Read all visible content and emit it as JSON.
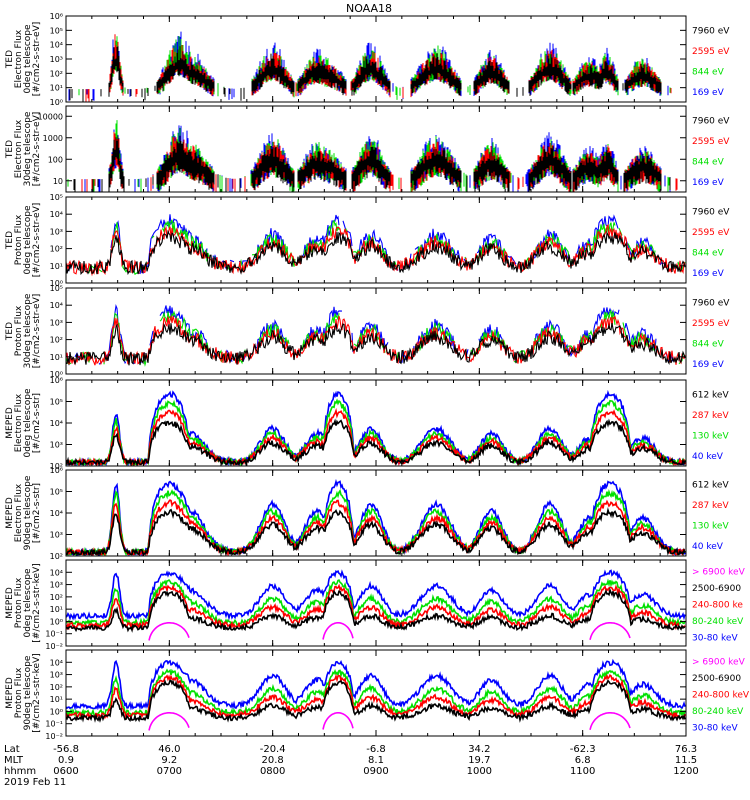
{
  "chart_data": {
    "type": "line",
    "title": "NOAA18",
    "colors": {
      "black": "#000000",
      "red": "#ff0000",
      "green": "#00e000",
      "blue": "#0000ff",
      "magenta": "#ff00ff"
    },
    "panels": [
      {
        "ylabel_lines": [
          "TED",
          "Electron Flux",
          "0deg telescope",
          "[#/cm2-s-str-eV]"
        ],
        "ylim": [
          1,
          1000000
        ],
        "yticks": [
          {
            "v": 1,
            "label": "10⁰"
          },
          {
            "v": 10,
            "label": "10¹"
          },
          {
            "v": 100,
            "label": "10²"
          },
          {
            "v": 1000,
            "label": "10³"
          },
          {
            "v": 10000,
            "label": "10⁴"
          },
          {
            "v": 100000,
            "label": "10⁵"
          },
          {
            "v": 1000000,
            "label": "10⁶"
          }
        ],
        "legend": [
          {
            "label": "7960 eV",
            "color": "black"
          },
          {
            "label": "2595 eV",
            "color": "red"
          },
          {
            "label": "844 eV",
            "color": "green"
          },
          {
            "label": "169 eV",
            "color": "blue"
          }
        ],
        "seed": 11,
        "kind": "spiky",
        "baseline": 20,
        "peakmax": 100000.0
      },
      {
        "ylabel_lines": [
          "TED",
          "Electron Flux",
          "30deg telescope",
          "[#/cm2-s-str-eV]"
        ],
        "ylim": [
          3,
          30000
        ],
        "yticks": [
          {
            "v": 10,
            "label": "10"
          },
          {
            "v": 100,
            "label": "100"
          },
          {
            "v": 1000,
            "label": "1000"
          },
          {
            "v": 10000,
            "label": "10000"
          }
        ],
        "legend": [
          {
            "label": "7960 eV",
            "color": "black"
          },
          {
            "label": "2595 eV",
            "color": "red"
          },
          {
            "label": "844 eV",
            "color": "green"
          },
          {
            "label": "169 eV",
            "color": "blue"
          }
        ],
        "seed": 23,
        "kind": "spiky",
        "baseline": 10,
        "peakmax": 5000
      },
      {
        "ylabel_lines": [
          "TED",
          "Proton Flux",
          "0deg telescope",
          "[#/cm2-s-str-eV]"
        ],
        "ylim": [
          1,
          100000
        ],
        "yticks": [
          {
            "v": 1,
            "label": "10⁰"
          },
          {
            "v": 10,
            "label": "10¹"
          },
          {
            "v": 100,
            "label": "10²"
          },
          {
            "v": 1000,
            "label": "10³"
          },
          {
            "v": 10000,
            "label": "10⁴"
          },
          {
            "v": 100000,
            "label": "10⁵"
          }
        ],
        "legend": [
          {
            "label": "7960 eV",
            "color": "black"
          },
          {
            "label": "2595 eV",
            "color": "red"
          },
          {
            "label": "844 eV",
            "color": "green"
          },
          {
            "label": "169 eV",
            "color": "blue"
          }
        ],
        "seed": 37,
        "kind": "proton",
        "baseline": 15,
        "peakmax": 10000.0
      },
      {
        "ylabel_lines": [
          "TED",
          "Proton Flux",
          "30deg telescope",
          "[#/cm2-s-str-eV]"
        ],
        "ylim": [
          1,
          100000
        ],
        "yticks": [
          {
            "v": 1,
            "label": "10⁰"
          },
          {
            "v": 10,
            "label": "10¹"
          },
          {
            "v": 100,
            "label": "10²"
          },
          {
            "v": 1000,
            "label": "10³"
          },
          {
            "v": 10000,
            "label": "10⁴"
          },
          {
            "v": 100000,
            "label": "10⁵"
          }
        ],
        "legend": [
          {
            "label": "7960 eV",
            "color": "black"
          },
          {
            "label": "2595 eV",
            "color": "red"
          },
          {
            "label": "844 eV",
            "color": "green"
          },
          {
            "label": "169 eV",
            "color": "blue"
          }
        ],
        "seed": 41,
        "kind": "proton",
        "baseline": 15,
        "peakmax": 10000.0
      },
      {
        "ylabel_lines": [
          "MEPED",
          "Electron Flux",
          "0deg telescope",
          "[#/cm2-s-str]"
        ],
        "ylim": [
          100,
          1000000
        ],
        "yticks": [
          {
            "v": 100,
            "label": "10²"
          },
          {
            "v": 1000,
            "label": "10³"
          },
          {
            "v": 10000,
            "label": "10⁴"
          },
          {
            "v": 100000,
            "label": "10⁵"
          },
          {
            "v": 1000000,
            "label": "10⁶"
          }
        ],
        "legend": [
          {
            "label": "612 keV",
            "color": "black"
          },
          {
            "label": "287 keV",
            "color": "red"
          },
          {
            "label": "130 keV",
            "color": "green"
          },
          {
            "label": "40 keV",
            "color": "blue"
          }
        ],
        "seed": 53,
        "kind": "meped_e0",
        "baseline": 200,
        "peakmax": 500000.0
      },
      {
        "ylabel_lines": [
          "MEPED",
          "Electron Flux",
          "90deg telescope",
          "[#/cm2-s-str]"
        ],
        "ylim": [
          100,
          1000000
        ],
        "yticks": [
          {
            "v": 100,
            "label": "10²"
          },
          {
            "v": 1000,
            "label": "10³"
          },
          {
            "v": 10000,
            "label": "10⁴"
          },
          {
            "v": 100000,
            "label": "10⁵"
          },
          {
            "v": 1000000,
            "label": "10⁶"
          }
        ],
        "legend": [
          {
            "label": "612 keV",
            "color": "black"
          },
          {
            "label": "287 keV",
            "color": "red"
          },
          {
            "label": "130 keV",
            "color": "green"
          },
          {
            "label": "40 keV",
            "color": "blue"
          }
        ],
        "seed": 67,
        "kind": "meped_e90",
        "baseline": 300,
        "peakmax": 500000.0
      },
      {
        "ylabel_lines": [
          "MEPED",
          "Proton Flux",
          "0deg telescope",
          "[#/cm2-s-str-keV]"
        ],
        "ylim": [
          0.01,
          100000
        ],
        "yticks": [
          {
            "v": 0.01,
            "label": "10⁻²"
          },
          {
            "v": 0.1,
            "label": "10⁻¹"
          },
          {
            "v": 1,
            "label": "10⁰"
          },
          {
            "v": 10,
            "label": "10¹"
          },
          {
            "v": 100,
            "label": "10²"
          },
          {
            "v": 1000,
            "label": "10³"
          },
          {
            "v": 10000,
            "label": "10⁴"
          }
        ],
        "legend": [
          {
            "label": "> 6900 keV",
            "color": "magenta"
          },
          {
            "label": "2500-6900",
            "color": "black"
          },
          {
            "label": "240-800 ke",
            "color": "red"
          },
          {
            "label": "80-240 keV",
            "color": "green"
          },
          {
            "label": "30-80 keV",
            "color": "blue"
          }
        ],
        "seed": 79,
        "kind": "meped_p",
        "baseline": 2,
        "peakmax": 10000.0
      },
      {
        "ylabel_lines": [
          "MEPED",
          "Proton Flux",
          "90deg telescope",
          "[#/cm2-s-str-keV]"
        ],
        "ylim": [
          0.01,
          100000
        ],
        "yticks": [
          {
            "v": 0.01,
            "label": "10⁻²"
          },
          {
            "v": 0.1,
            "label": "10⁻¹"
          },
          {
            "v": 1,
            "label": "10⁰"
          },
          {
            "v": 10,
            "label": "10¹"
          },
          {
            "v": 100,
            "label": "10²"
          },
          {
            "v": 1000,
            "label": "10³"
          },
          {
            "v": 10000,
            "label": "10⁴"
          }
        ],
        "legend": [
          {
            "label": "> 6900 keV",
            "color": "magenta"
          },
          {
            "label": "2500-6900",
            "color": "black"
          },
          {
            "label": "240-800 keV",
            "color": "red"
          },
          {
            "label": "80-240 keV",
            "color": "green"
          },
          {
            "label": "30-80 keV",
            "color": "blue"
          }
        ],
        "seed": 97,
        "kind": "meped_p90",
        "baseline": 3,
        "peakmax": 10000.0
      }
    ],
    "x_axis": {
      "row_labels": [
        "Lat",
        "MLT",
        "hhmm"
      ],
      "xlim": [
        600,
        1200
      ],
      "ticks": [
        {
          "x": 600,
          "lat": "-56.8",
          "mlt": "0.9",
          "hhmm": "0600"
        },
        {
          "x": 700,
          "lat": "46.0",
          "mlt": "9.2",
          "hhmm": "0700"
        },
        {
          "x": 800,
          "lat": "-20.4",
          "mlt": "20.8",
          "hhmm": "0800"
        },
        {
          "x": 900,
          "lat": "-6.8",
          "mlt": "8.1",
          "hhmm": "0900"
        },
        {
          "x": 1000,
          "lat": "34.2",
          "mlt": "19.7",
          "hhmm": "1000"
        },
        {
          "x": 1100,
          "lat": "-62.3",
          "mlt": "6.8",
          "hhmm": "1100"
        },
        {
          "x": 1200,
          "lat": "76.3",
          "mlt": "11.5",
          "hhmm": "1200"
        }
      ],
      "date": "2019 Feb 11"
    },
    "events": [
      {
        "t": 629,
        "w": 3,
        "a": 1.0
      },
      {
        "t": 672,
        "w": 12,
        "a": 0.6
      },
      {
        "t": 706,
        "w": 10,
        "a": 0.85
      },
      {
        "t": 760,
        "w": 10,
        "a": 0.7
      },
      {
        "t": 791,
        "w": 11,
        "a": 0.5
      },
      {
        "t": 826,
        "w": 10,
        "a": 0.6
      },
      {
        "t": 857,
        "w": 9,
        "a": 0.7
      },
      {
        "t": 897,
        "w": 8,
        "a": 0.5
      },
      {
        "t": 935,
        "w": 12,
        "a": 0.7
      },
      {
        "t": 967,
        "w": 9,
        "a": 0.6
      },
      {
        "t": 999,
        "w": 8,
        "a": 0.6
      },
      {
        "t": 1041,
        "w": 10,
        "a": 0.7
      },
      {
        "t": 1074,
        "w": 6,
        "a": 0.6
      },
      {
        "t": 1104,
        "w": 9,
        "a": 0.5
      },
      {
        "t": 1135,
        "w": 10,
        "a": 0.5
      },
      {
        "t": 1196,
        "w": 4,
        "a": 0.9
      }
    ],
    "arcs": [
      {
        "t": 700,
        "w": 12
      },
      {
        "t": 838,
        "w": 9
      },
      {
        "t": 1076,
        "w": 12
      }
    ]
  }
}
